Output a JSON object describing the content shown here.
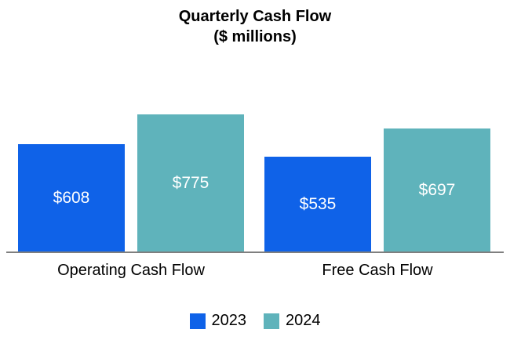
{
  "chart_data": {
    "type": "bar",
    "title": "Quarterly Cash Flow",
    "subtitle": "($ millions)",
    "categories": [
      "Operating Cash Flow",
      "Free Cash Flow"
    ],
    "series": [
      {
        "name": "2023",
        "color": "#0F62E8",
        "values": [
          608,
          535
        ],
        "labels": [
          "$608",
          "$535"
        ]
      },
      {
        "name": "2024",
        "color": "#5FB3BB",
        "values": [
          775,
          697
        ],
        "labels": [
          "$775",
          "$697"
        ]
      }
    ],
    "xlabel": "",
    "ylabel": "",
    "ylim": [
      0,
      775
    ],
    "grid": false,
    "legend_position": "bottom",
    "value_labels_inside_bars": true
  }
}
